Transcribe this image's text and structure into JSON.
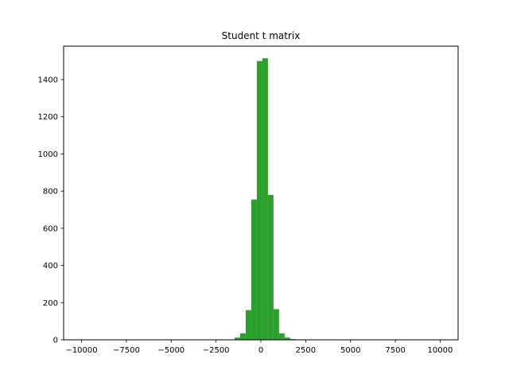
{
  "chart_data": {
    "type": "bar",
    "title": "Student t matrix",
    "xlabel": "",
    "ylabel": "",
    "xlim": [
      -11000,
      11000
    ],
    "ylim": [
      0,
      1580
    ],
    "x_ticks": [
      -10000,
      -7500,
      -5000,
      -2500,
      0,
      2500,
      5000,
      7500,
      10000
    ],
    "x_tick_labels": [
      "−10000",
      "−7500",
      "−5000",
      "−2500",
      "0",
      "2500",
      "5000",
      "7500",
      "10000"
    ],
    "y_ticks": [
      0,
      200,
      400,
      600,
      800,
      1000,
      1200,
      1400
    ],
    "y_tick_labels": [
      "0",
      "200",
      "400",
      "600",
      "800",
      "1000",
      "1200",
      "1400"
    ],
    "grid": false,
    "color": "#2ca02c",
    "bins": [
      {
        "left": -2085,
        "right": -1775,
        "count": 1
      },
      {
        "left": -1775,
        "right": -1465,
        "count": 2
      },
      {
        "left": -1465,
        "right": -1155,
        "count": 12
      },
      {
        "left": -1155,
        "right": -845,
        "count": 35
      },
      {
        "left": -845,
        "right": -535,
        "count": 160
      },
      {
        "left": -535,
        "right": -225,
        "count": 755
      },
      {
        "left": -225,
        "right": 85,
        "count": 1500
      },
      {
        "left": 85,
        "right": 395,
        "count": 1515
      },
      {
        "left": 395,
        "right": 705,
        "count": 780
      },
      {
        "left": 705,
        "right": 1015,
        "count": 165
      },
      {
        "left": 1015,
        "right": 1325,
        "count": 35
      },
      {
        "left": 1325,
        "right": 1635,
        "count": 12
      },
      {
        "left": 1635,
        "right": 1945,
        "count": 4
      },
      {
        "left": 1945,
        "right": 2255,
        "count": 1
      }
    ]
  }
}
